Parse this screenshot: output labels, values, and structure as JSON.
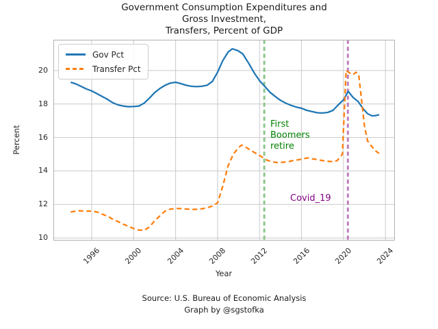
{
  "title": {
    "lines": [
      "Government Consumption Expenditures and",
      "Gross Investment,",
      "Transfers, Percent of GDP"
    ]
  },
  "footer": {
    "lines": [
      "Source: U.S. Bureau of Economic Analysis",
      "Graph by @sgstofka"
    ]
  },
  "axes": {
    "xlabel": "Year",
    "ylabel": "Percent"
  },
  "legend": {
    "position": "upper left",
    "items": [
      {
        "label": "Gov Pct",
        "color": "#1f77b4",
        "style": "solid"
      },
      {
        "label": "Transfer Pct",
        "color": "#ff7f0e",
        "style": "dashed"
      }
    ]
  },
  "annotations": {
    "boomers": {
      "text": "First Boomers retire",
      "color": "#008000"
    },
    "covid": {
      "text": "Covid_19",
      "color": "#800080"
    }
  },
  "colors": {
    "grid": "#c9c9c9",
    "spine": "#b0b0b0",
    "tick_text": "#262626"
  },
  "chart_data": {
    "type": "line",
    "title": "Government Consumption Expenditures and Gross Investment, Transfers, Percent of GDP",
    "xlabel": "Year",
    "ylabel": "Percent",
    "xlim": [
      1992.35,
      2024.9
    ],
    "ylim": [
      9.84,
      21.84
    ],
    "x_ticks": [
      1996,
      2000,
      2004,
      2008,
      2012,
      2016,
      2020,
      2024
    ],
    "y_ticks": [
      10,
      12,
      14,
      16,
      18,
      20
    ],
    "grid": true,
    "legend_position": "upper left",
    "vlines": [
      {
        "x": 2012.45,
        "color": "#8cc68c",
        "style": "dashed",
        "label": "First Boomers retire",
        "label_color": "#008000"
      },
      {
        "x": 2020.42,
        "color": "#bf80bf",
        "style": "dashed",
        "label": "Covid_19",
        "label_color": "#800080"
      }
    ],
    "series": [
      {
        "name": "Gov Pct",
        "color": "#1f77b4",
        "style": "solid",
        "points": [
          [
            1994.0,
            19.3
          ],
          [
            1994.5,
            19.2
          ],
          [
            1995.0,
            19.05
          ],
          [
            1995.5,
            18.9
          ],
          [
            1996.0,
            18.78
          ],
          [
            1996.5,
            18.62
          ],
          [
            1997.0,
            18.45
          ],
          [
            1997.5,
            18.28
          ],
          [
            1998.0,
            18.08
          ],
          [
            1998.5,
            17.95
          ],
          [
            1999.0,
            17.88
          ],
          [
            1999.5,
            17.84
          ],
          [
            2000.0,
            17.85
          ],
          [
            2000.5,
            17.88
          ],
          [
            2001.0,
            18.05
          ],
          [
            2001.5,
            18.35
          ],
          [
            2002.0,
            18.68
          ],
          [
            2002.5,
            18.93
          ],
          [
            2003.0,
            19.12
          ],
          [
            2003.5,
            19.25
          ],
          [
            2004.0,
            19.3
          ],
          [
            2004.5,
            19.22
          ],
          [
            2005.0,
            19.12
          ],
          [
            2005.5,
            19.06
          ],
          [
            2006.0,
            19.04
          ],
          [
            2006.5,
            19.06
          ],
          [
            2007.0,
            19.12
          ],
          [
            2007.5,
            19.35
          ],
          [
            2008.0,
            19.9
          ],
          [
            2008.5,
            20.6
          ],
          [
            2009.0,
            21.1
          ],
          [
            2009.4,
            21.3
          ],
          [
            2009.9,
            21.2
          ],
          [
            2010.4,
            21.0
          ],
          [
            2011.0,
            20.4
          ],
          [
            2011.5,
            19.85
          ],
          [
            2012.0,
            19.4
          ],
          [
            2012.5,
            19.05
          ],
          [
            2013.0,
            18.7
          ],
          [
            2013.5,
            18.45
          ],
          [
            2014.0,
            18.22
          ],
          [
            2014.5,
            18.05
          ],
          [
            2015.0,
            17.92
          ],
          [
            2015.5,
            17.82
          ],
          [
            2016.0,
            17.75
          ],
          [
            2016.5,
            17.62
          ],
          [
            2017.0,
            17.55
          ],
          [
            2017.5,
            17.48
          ],
          [
            2018.0,
            17.46
          ],
          [
            2018.5,
            17.5
          ],
          [
            2019.0,
            17.62
          ],
          [
            2019.5,
            17.95
          ],
          [
            2020.0,
            18.25
          ],
          [
            2020.45,
            18.76
          ],
          [
            2020.9,
            18.4
          ],
          [
            2021.4,
            18.15
          ],
          [
            2021.9,
            17.7
          ],
          [
            2022.3,
            17.42
          ],
          [
            2022.7,
            17.3
          ],
          [
            2023.0,
            17.3
          ],
          [
            2023.4,
            17.36
          ]
        ]
      },
      {
        "name": "Transfer Pct",
        "color": "#ff7f0e",
        "style": "dashed",
        "points": [
          [
            1994.0,
            11.55
          ],
          [
            1994.7,
            11.62
          ],
          [
            1995.5,
            11.6
          ],
          [
            1996.0,
            11.6
          ],
          [
            1996.5,
            11.55
          ],
          [
            1997.0,
            11.42
          ],
          [
            1997.5,
            11.3
          ],
          [
            1998.0,
            11.12
          ],
          [
            1998.5,
            10.98
          ],
          [
            1999.0,
            10.82
          ],
          [
            1999.5,
            10.7
          ],
          [
            2000.0,
            10.56
          ],
          [
            2000.5,
            10.47
          ],
          [
            2001.0,
            10.45
          ],
          [
            2001.5,
            10.65
          ],
          [
            2002.0,
            11.02
          ],
          [
            2002.5,
            11.32
          ],
          [
            2003.0,
            11.6
          ],
          [
            2003.5,
            11.72
          ],
          [
            2004.0,
            11.76
          ],
          [
            2004.5,
            11.75
          ],
          [
            2005.0,
            11.73
          ],
          [
            2005.5,
            11.7
          ],
          [
            2006.0,
            11.71
          ],
          [
            2006.5,
            11.74
          ],
          [
            2007.0,
            11.8
          ],
          [
            2007.5,
            11.9
          ],
          [
            2008.0,
            12.1
          ],
          [
            2008.5,
            13.1
          ],
          [
            2009.0,
            14.3
          ],
          [
            2009.5,
            15.0
          ],
          [
            2010.0,
            15.4
          ],
          [
            2010.3,
            15.55
          ],
          [
            2010.8,
            15.38
          ],
          [
            2011.3,
            15.18
          ],
          [
            2011.8,
            15.0
          ],
          [
            2012.2,
            14.85
          ],
          [
            2012.7,
            14.65
          ],
          [
            2013.2,
            14.55
          ],
          [
            2013.7,
            14.5
          ],
          [
            2014.2,
            14.52
          ],
          [
            2014.7,
            14.55
          ],
          [
            2015.2,
            14.62
          ],
          [
            2015.7,
            14.67
          ],
          [
            2016.2,
            14.73
          ],
          [
            2016.6,
            14.78
          ],
          [
            2017.0,
            14.73
          ],
          [
            2017.5,
            14.68
          ],
          [
            2018.0,
            14.62
          ],
          [
            2018.5,
            14.58
          ],
          [
            2019.0,
            14.56
          ],
          [
            2019.4,
            14.62
          ],
          [
            2019.9,
            15.0
          ],
          [
            2020.25,
            20.0
          ],
          [
            2020.6,
            19.85
          ],
          [
            2020.9,
            19.75
          ],
          [
            2021.2,
            19.9
          ],
          [
            2021.45,
            19.75
          ],
          [
            2021.7,
            18.4
          ],
          [
            2022.0,
            16.7
          ],
          [
            2022.3,
            15.8
          ],
          [
            2022.6,
            15.55
          ],
          [
            2023.0,
            15.22
          ],
          [
            2023.4,
            15.05
          ]
        ]
      }
    ]
  }
}
